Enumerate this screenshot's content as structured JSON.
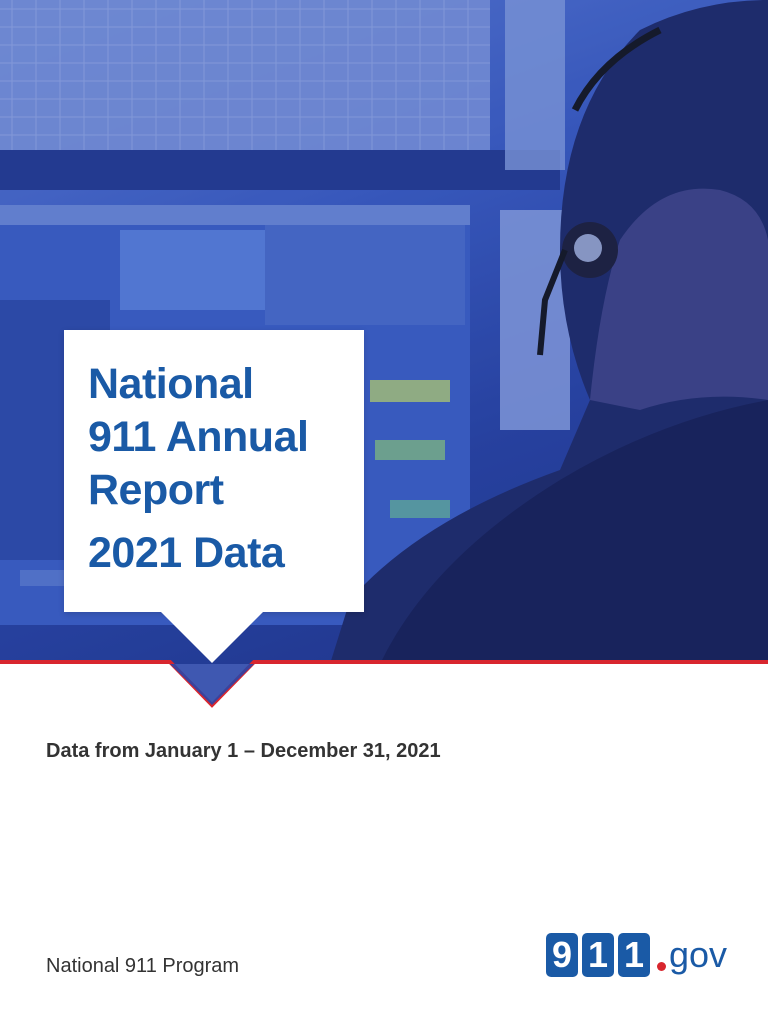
{
  "cover": {
    "title_lines": [
      "National",
      "911 Annual",
      "Report"
    ],
    "title_year": "2021 Data",
    "date_range": "Data from January 1 – December 31, 2021",
    "program": "National 911 Program"
  },
  "logo": {
    "digits": [
      "9",
      "1",
      "1"
    ],
    "suffix": "gov"
  },
  "colors": {
    "title_blue": "#1a5aa6",
    "accent_red": "#d8262e",
    "hero_overlay": "#2a46a8"
  }
}
